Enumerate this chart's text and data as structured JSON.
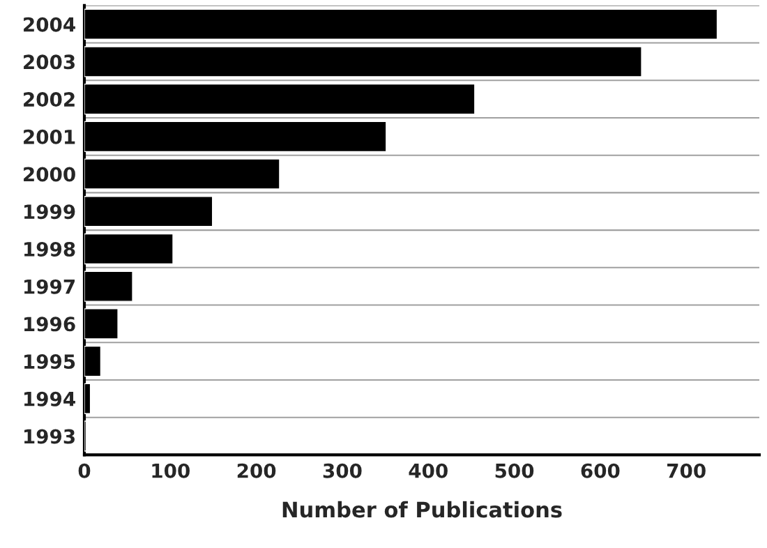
{
  "chart_data": {
    "type": "bar",
    "orientation": "horizontal",
    "xlabel": "Number of Publications",
    "categories": [
      "2004",
      "2003",
      "2002",
      "2001",
      "2000",
      "1999",
      "1998",
      "1997",
      "1996",
      "1995",
      "1994",
      "1993"
    ],
    "values": [
      736,
      648,
      454,
      351,
      227,
      149,
      103,
      56,
      39,
      19,
      7,
      2
    ],
    "color": "#000000",
    "xlim": [
      0,
      785
    ],
    "xticks": [
      0,
      100,
      200,
      300,
      400,
      500,
      600,
      700
    ],
    "grid": "y"
  }
}
